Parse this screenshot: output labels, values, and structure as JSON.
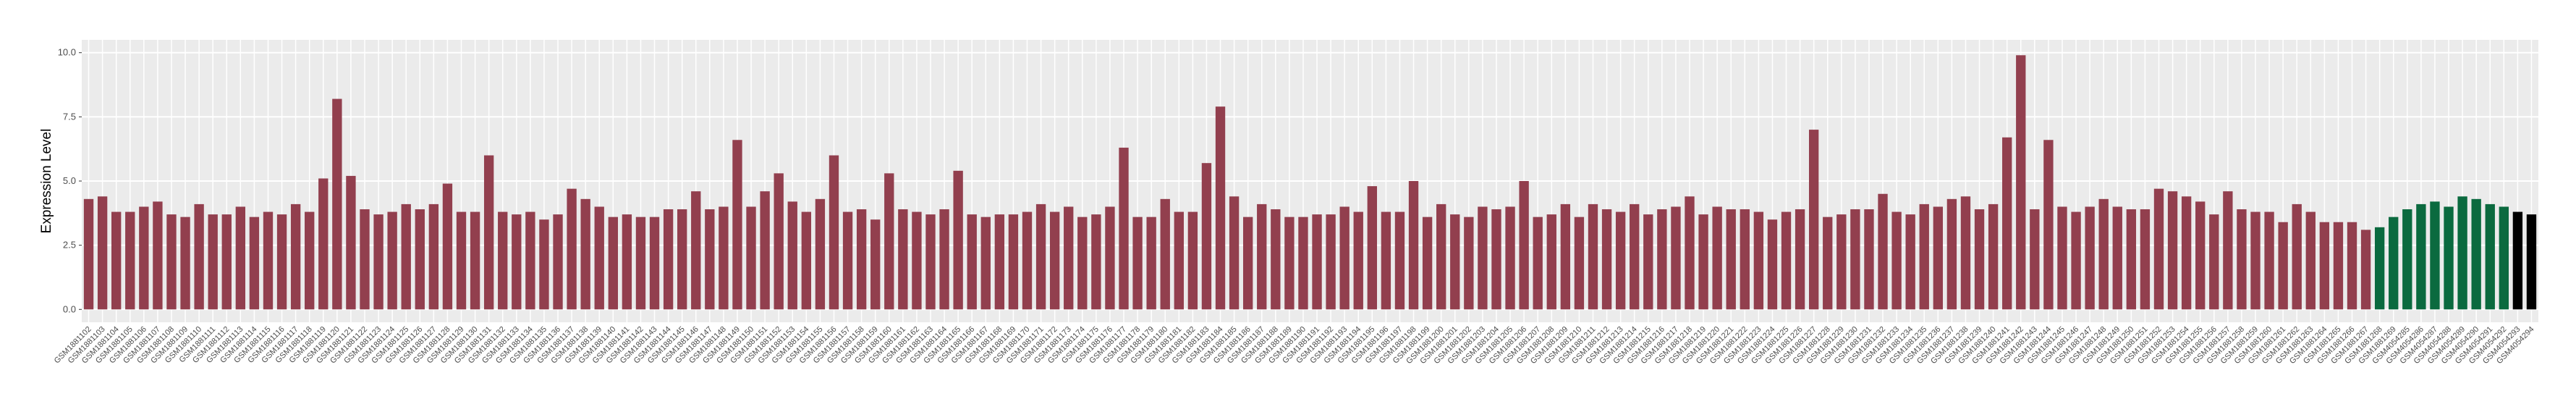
{
  "chart_data": {
    "type": "bar",
    "ylabel": "Expression Level",
    "categories": [
      "GSM1881102",
      "GSM1881103",
      "GSM1881104",
      "GSM1881105",
      "GSM1881106",
      "GSM1881107",
      "GSM1881108",
      "GSM1881109",
      "GSM1881110",
      "GSM1881111",
      "GSM1881112",
      "GSM1881113",
      "GSM1881114",
      "GSM1881115",
      "GSM1881116",
      "GSM1881117",
      "GSM1881118",
      "GSM1881119",
      "GSM1881120",
      "GSM1881121",
      "GSM1881122",
      "GSM1881123",
      "GSM1881124",
      "GSM1881125",
      "GSM1881126",
      "GSM1881127",
      "GSM1881128",
      "GSM1881129",
      "GSM1881130",
      "GSM1881131",
      "GSM1881132",
      "GSM1881133",
      "GSM1881134",
      "GSM1881135",
      "GSM1881136",
      "GSM1881137",
      "GSM1881138",
      "GSM1881139",
      "GSM1881140",
      "GSM1881141",
      "GSM1881142",
      "GSM1881143",
      "GSM1881144",
      "GSM1881145",
      "GSM1881146",
      "GSM1881147",
      "GSM1881148",
      "GSM1881149",
      "GSM1881150",
      "GSM1881151",
      "GSM1881152",
      "GSM1881153",
      "GSM1881154",
      "GSM1881155",
      "GSM1881156",
      "GSM1881157",
      "GSM1881158",
      "GSM1881159",
      "GSM1881160",
      "GSM1881161",
      "GSM1881162",
      "GSM1881163",
      "GSM1881164",
      "GSM1881165",
      "GSM1881166",
      "GSM1881167",
      "GSM1881168",
      "GSM1881169",
      "GSM1881170",
      "GSM1881171",
      "GSM1881172",
      "GSM1881173",
      "GSM1881174",
      "GSM1881175",
      "GSM1881176",
      "GSM1881177",
      "GSM1881178",
      "GSM1881179",
      "GSM1881180",
      "GSM1881181",
      "GSM1881182",
      "GSM1881183",
      "GSM1881184",
      "GSM1881185",
      "GSM1881186",
      "GSM1881187",
      "GSM1881188",
      "GSM1881189",
      "GSM1881190",
      "GSM1881191",
      "GSM1881192",
      "GSM1881193",
      "GSM1881194",
      "GSM1881195",
      "GSM1881196",
      "GSM1881197",
      "GSM1881198",
      "GSM1881199",
      "GSM1881200",
      "GSM1881201",
      "GSM1881202",
      "GSM1881203",
      "GSM1881204",
      "GSM1881205",
      "GSM1881206",
      "GSM1881207",
      "GSM1881208",
      "GSM1881209",
      "GSM1881210",
      "GSM1881211",
      "GSM1881212",
      "GSM1881213",
      "GSM1881214",
      "GSM1881215",
      "GSM1881216",
      "GSM1881217",
      "GSM1881218",
      "GSM1881219",
      "GSM1881220",
      "GSM1881221",
      "GSM1881222",
      "GSM1881223",
      "GSM1881224",
      "GSM1881225",
      "GSM1881226",
      "GSM1881227",
      "GSM1881228",
      "GSM1881229",
      "GSM1881230",
      "GSM1881231",
      "GSM1881232",
      "GSM1881233",
      "GSM1881234",
      "GSM1881235",
      "GSM1881236",
      "GSM1881237",
      "GSM1881238",
      "GSM1881239",
      "GSM1881240",
      "GSM1881241",
      "GSM1881242",
      "GSM1881243",
      "GSM1881244",
      "GSM1881245",
      "GSM1881246",
      "GSM1881247",
      "GSM1881248",
      "GSM1881249",
      "GSM1881250",
      "GSM1881251",
      "GSM1881252",
      "GSM1881253",
      "GSM1881254",
      "GSM1881255",
      "GSM1881256",
      "GSM1881257",
      "GSM1881258",
      "GSM1881259",
      "GSM1881260",
      "GSM1881261",
      "GSM1881262",
      "GSM1881263",
      "GSM1881264",
      "GSM1881265",
      "GSM1881266",
      "GSM1881267",
      "GSM1881268",
      "GSM1881269",
      "GSM4054285",
      "GSM4054286",
      "GSM4054287",
      "GSM4054288",
      "GSM4054289",
      "GSM4054290",
      "GSM4054291",
      "GSM4054292",
      "GSM4054293",
      "GSM4054294"
    ],
    "values": [
      4.3,
      4.4,
      3.8,
      3.8,
      4.0,
      4.2,
      3.7,
      3.6,
      4.1,
      3.7,
      3.7,
      4.0,
      3.6,
      3.8,
      3.7,
      4.1,
      3.8,
      5.1,
      8.2,
      5.2,
      3.9,
      3.7,
      3.8,
      4.1,
      3.9,
      4.1,
      4.9,
      3.8,
      3.8,
      6.0,
      3.8,
      3.7,
      3.8,
      3.5,
      3.7,
      4.7,
      4.3,
      4.0,
      3.6,
      3.7,
      3.6,
      3.6,
      3.9,
      3.9,
      4.6,
      3.9,
      4.0,
      6.6,
      4.0,
      4.6,
      5.3,
      4.2,
      3.8,
      4.3,
      6.0,
      3.8,
      3.9,
      3.5,
      5.3,
      3.9,
      3.8,
      3.7,
      3.9,
      5.4,
      3.7,
      3.6,
      3.7,
      3.7,
      3.8,
      4.1,
      3.8,
      4.0,
      3.6,
      3.7,
      4.0,
      6.3,
      3.6,
      3.6,
      4.3,
      3.8,
      3.8,
      5.7,
      7.9,
      4.4,
      3.6,
      4.1,
      3.9,
      3.6,
      3.6,
      3.7,
      3.7,
      4.0,
      3.8,
      4.8,
      3.8,
      3.8,
      5.0,
      3.6,
      4.1,
      3.7,
      3.6,
      4.0,
      3.9,
      4.0,
      5.0,
      3.6,
      3.7,
      4.1,
      3.6,
      4.1,
      3.9,
      3.8,
      4.1,
      3.7,
      3.9,
      4.0,
      4.4,
      3.7,
      4.0,
      3.9,
      3.9,
      3.8,
      3.5,
      3.8,
      3.9,
      7.0,
      3.6,
      3.7,
      3.9,
      3.9,
      4.5,
      3.8,
      3.7,
      4.1,
      4.0,
      4.3,
      4.4,
      3.9,
      4.1,
      6.7,
      9.9,
      3.9,
      6.6,
      4.0,
      3.8,
      4.0,
      4.3,
      4.0,
      3.9,
      3.9,
      4.7,
      4.6,
      4.4,
      4.2,
      3.7,
      4.6,
      3.9,
      3.8,
      3.8,
      3.4,
      4.1,
      3.8,
      3.4,
      3.4,
      3.4,
      3.1,
      3.2,
      3.6,
      3.9,
      4.1,
      4.2,
      4.0,
      4.4,
      4.3,
      4.1,
      4.0,
      3.8,
      3.7
    ],
    "colors": [
      "#923f4e",
      "#923f4e",
      "#923f4e",
      "#923f4e",
      "#923f4e",
      "#923f4e",
      "#923f4e",
      "#923f4e",
      "#923f4e",
      "#923f4e",
      "#923f4e",
      "#923f4e",
      "#923f4e",
      "#923f4e",
      "#923f4e",
      "#923f4e",
      "#923f4e",
      "#923f4e",
      "#923f4e",
      "#923f4e",
      "#923f4e",
      "#923f4e",
      "#923f4e",
      "#923f4e",
      "#923f4e",
      "#923f4e",
      "#923f4e",
      "#923f4e",
      "#923f4e",
      "#923f4e",
      "#923f4e",
      "#923f4e",
      "#923f4e",
      "#923f4e",
      "#923f4e",
      "#923f4e",
      "#923f4e",
      "#923f4e",
      "#923f4e",
      "#923f4e",
      "#923f4e",
      "#923f4e",
      "#923f4e",
      "#923f4e",
      "#923f4e",
      "#923f4e",
      "#923f4e",
      "#923f4e",
      "#923f4e",
      "#923f4e",
      "#923f4e",
      "#923f4e",
      "#923f4e",
      "#923f4e",
      "#923f4e",
      "#923f4e",
      "#923f4e",
      "#923f4e",
      "#923f4e",
      "#923f4e",
      "#923f4e",
      "#923f4e",
      "#923f4e",
      "#923f4e",
      "#923f4e",
      "#923f4e",
      "#923f4e",
      "#923f4e",
      "#923f4e",
      "#923f4e",
      "#923f4e",
      "#923f4e",
      "#923f4e",
      "#923f4e",
      "#923f4e",
      "#923f4e",
      "#923f4e",
      "#923f4e",
      "#923f4e",
      "#923f4e",
      "#923f4e",
      "#923f4e",
      "#923f4e",
      "#923f4e",
      "#923f4e",
      "#923f4e",
      "#923f4e",
      "#923f4e",
      "#923f4e",
      "#923f4e",
      "#923f4e",
      "#923f4e",
      "#923f4e",
      "#923f4e",
      "#923f4e",
      "#923f4e",
      "#923f4e",
      "#923f4e",
      "#923f4e",
      "#923f4e",
      "#923f4e",
      "#923f4e",
      "#923f4e",
      "#923f4e",
      "#923f4e",
      "#923f4e",
      "#923f4e",
      "#923f4e",
      "#923f4e",
      "#923f4e",
      "#923f4e",
      "#923f4e",
      "#923f4e",
      "#923f4e",
      "#923f4e",
      "#923f4e",
      "#923f4e",
      "#923f4e",
      "#923f4e",
      "#923f4e",
      "#923f4e",
      "#923f4e",
      "#923f4e",
      "#923f4e",
      "#923f4e",
      "#923f4e",
      "#923f4e",
      "#923f4e",
      "#923f4e",
      "#923f4e",
      "#923f4e",
      "#923f4e",
      "#923f4e",
      "#923f4e",
      "#923f4e",
      "#923f4e",
      "#923f4e",
      "#923f4e",
      "#923f4e",
      "#923f4e",
      "#923f4e",
      "#923f4e",
      "#923f4e",
      "#923f4e",
      "#923f4e",
      "#923f4e",
      "#923f4e",
      "#923f4e",
      "#923f4e",
      "#923f4e",
      "#923f4e",
      "#923f4e",
      "#923f4e",
      "#923f4e",
      "#923f4e",
      "#923f4e",
      "#923f4e",
      "#923f4e",
      "#923f4e",
      "#923f4e",
      "#923f4e",
      "#923f4e",
      "#923f4e",
      "#923f4e",
      "#923f4e",
      "#923f4e",
      "#0b6a3f",
      "#0b6a3f",
      "#0b6a3f",
      "#0b6a3f",
      "#0b6a3f",
      "#0b6a3f",
      "#0b6a3f",
      "#0b6a3f",
      "#0b6a3f",
      "#0b6a3f"
    ],
    "ylim": [
      -0.5,
      10.5
    ],
    "yticks": [
      {
        "value": 0,
        "label": "0.0"
      },
      {
        "value": 2.5,
        "label": "2.5"
      },
      {
        "value": 5,
        "label": "5.0"
      },
      {
        "value": 7.5,
        "label": "7.5"
      },
      {
        "value": 10,
        "label": "10.0"
      }
    ],
    "grid": true
  }
}
